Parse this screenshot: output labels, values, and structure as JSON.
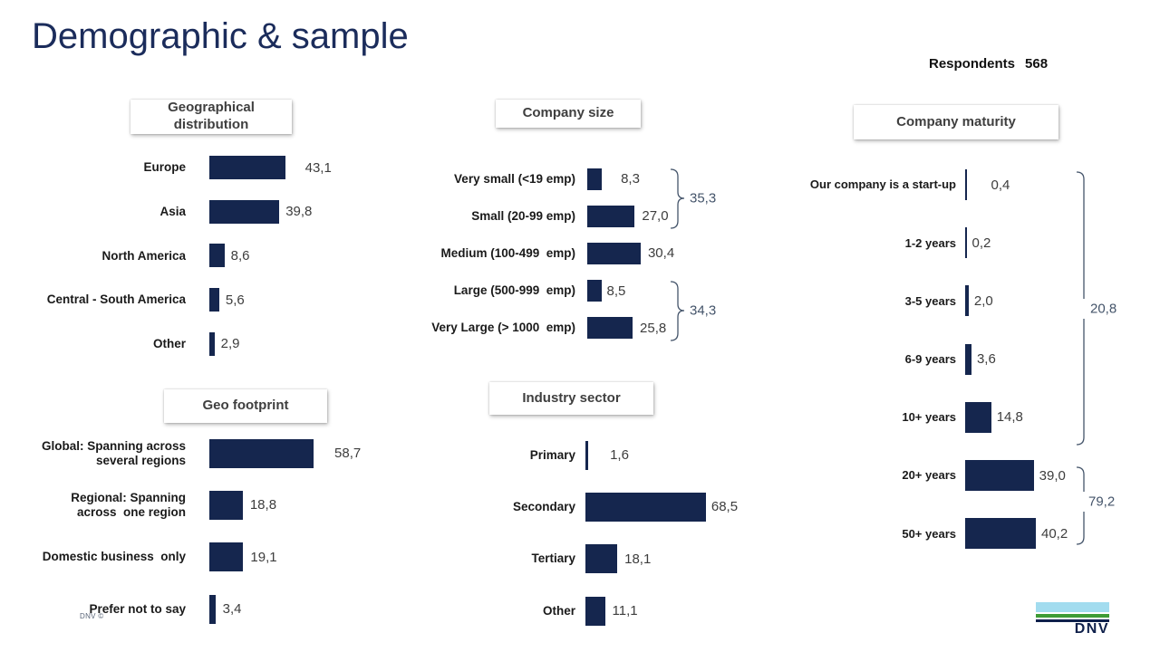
{
  "slide": {
    "title": "Demographic & sample",
    "respondents_label": "Respondents",
    "respondents_value": "568",
    "footer": "DNV ©",
    "logo_text": "DNV"
  },
  "colors": {
    "bar": "#15264e",
    "title": "#1b2c5b",
    "bracket": "#44546a",
    "logo_sky": "#a2dcef",
    "logo_green": "#3f9c35",
    "logo_navy": "#0f204b"
  },
  "chart_data": [
    {
      "id": "geographical-distribution",
      "type": "bar",
      "orientation": "horizontal",
      "title": "Geographical distribution",
      "categories": [
        "Europe",
        "Asia",
        "North America",
        "Central - South America",
        "Other"
      ],
      "values": [
        43.1,
        39.8,
        8.6,
        5.6,
        2.9
      ],
      "value_labels": [
        "43,1",
        "39,8",
        "8,6",
        "5,6",
        "2,9"
      ],
      "xlim": [
        0,
        100
      ],
      "grid": false,
      "legend": false
    },
    {
      "id": "company-size",
      "type": "bar",
      "orientation": "horizontal",
      "title": "Company size",
      "categories": [
        "Very small (<19 emp)",
        "Small (20-99 emp)",
        "Medium (100-499  emp)",
        "Large (500-999  emp)",
        "Very Large (> 1000  emp)"
      ],
      "values": [
        8.3,
        27.0,
        30.4,
        8.5,
        25.8
      ],
      "value_labels": [
        "8,3",
        "27,0",
        "30,4",
        "8,5",
        "25,8"
      ],
      "brackets": [
        {
          "label": "35,3",
          "rows": "Very small + Small"
        },
        {
          "label": "34,3",
          "rows": "Large + Very Large"
        }
      ],
      "xlim": [
        0,
        100
      ],
      "grid": false,
      "legend": false
    },
    {
      "id": "company-maturity",
      "type": "bar",
      "orientation": "horizontal",
      "title": "Company maturity",
      "categories": [
        "Our company is a start-up",
        "1-2 years",
        "3-5 years",
        "6-9 years",
        "10+ years",
        "20+ years",
        "50+ years"
      ],
      "values": [
        0.4,
        0.2,
        2.0,
        3.6,
        14.8,
        39.0,
        40.2
      ],
      "value_labels": [
        "0,4",
        "0,2",
        "2,0",
        "3,6",
        "14,8",
        "39,0",
        "40,2"
      ],
      "brackets": [
        {
          "label": "20,8",
          "rows": "start-up through 10+ years"
        },
        {
          "label": "79,2",
          "rows": "20+ years + 50+ years"
        }
      ],
      "xlim": [
        0,
        100
      ],
      "grid": false,
      "legend": false
    },
    {
      "id": "geo-footprint",
      "type": "bar",
      "orientation": "horizontal",
      "title": "Geo footprint",
      "categories": [
        "Global: Spanning across\nseveral regions",
        "Regional: Spanning\nacross  one region",
        "Domestic business  only",
        "Prefer not to say"
      ],
      "values": [
        58.7,
        18.8,
        19.1,
        3.4
      ],
      "value_labels": [
        "58,7",
        "18,8",
        "19,1",
        "3,4"
      ],
      "xlim": [
        0,
        100
      ],
      "grid": false,
      "legend": false
    },
    {
      "id": "industry-sector",
      "type": "bar",
      "orientation": "horizontal",
      "title": "Industry sector",
      "categories": [
        "Primary",
        "Secondary",
        "Tertiary",
        "Other"
      ],
      "values": [
        1.6,
        68.5,
        18.1,
        11.1
      ],
      "value_labels": [
        "1,6",
        "68,5",
        "18,1",
        "11,1"
      ],
      "xlim": [
        0,
        100
      ],
      "grid": false,
      "legend": false
    }
  ]
}
